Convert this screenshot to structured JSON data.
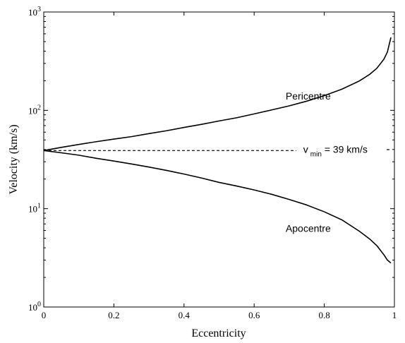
{
  "chart_data": {
    "type": "line",
    "title": "",
    "xlabel": "Eccentricity",
    "ylabel": "Velocity (km/s)",
    "xlim": [
      0,
      1
    ],
    "ylim": [
      1,
      1000
    ],
    "yscale": "log",
    "grid": false,
    "x_ticks": [
      {
        "value": 0,
        "label": "0"
      },
      {
        "value": 0.2,
        "label": "0.2"
      },
      {
        "value": 0.4,
        "label": "0.4"
      },
      {
        "value": 0.6,
        "label": "0.6"
      },
      {
        "value": 0.8,
        "label": "0.8"
      },
      {
        "value": 1,
        "label": "1"
      }
    ],
    "y_ticks": [
      {
        "value": 1,
        "base": "10",
        "exp": "0"
      },
      {
        "value": 10,
        "base": "10",
        "exp": "1"
      },
      {
        "value": 100,
        "base": "10",
        "exp": "2"
      },
      {
        "value": 1000,
        "base": "10",
        "exp": "3"
      }
    ],
    "series": [
      {
        "name": "Pericentre",
        "style": "solid",
        "x": [
          0,
          0.05,
          0.1,
          0.15,
          0.2,
          0.25,
          0.3,
          0.35,
          0.4,
          0.45,
          0.5,
          0.55,
          0.6,
          0.65,
          0.7,
          0.75,
          0.8,
          0.85,
          0.9,
          0.93,
          0.95,
          0.97,
          0.98,
          0.99
        ],
        "y": [
          39,
          42,
          45,
          48,
          51,
          54,
          58,
          62,
          67,
          72,
          78,
          84,
          92,
          101,
          111,
          124,
          141,
          164,
          199,
          233,
          268,
          331,
          392,
          551
        ]
      },
      {
        "name": "Apocentre",
        "style": "solid",
        "x": [
          0,
          0.05,
          0.1,
          0.15,
          0.2,
          0.25,
          0.3,
          0.35,
          0.4,
          0.45,
          0.5,
          0.55,
          0.6,
          0.65,
          0.7,
          0.75,
          0.8,
          0.85,
          0.9,
          0.93,
          0.95,
          0.97,
          0.98,
          0.99
        ],
        "y": [
          39,
          37,
          35,
          32.5,
          30.5,
          28.5,
          26.5,
          24.5,
          22.5,
          20.5,
          18.5,
          17,
          15.5,
          14,
          12.4,
          10.9,
          9.3,
          7.7,
          5.9,
          4.9,
          4.2,
          3.4,
          3.0,
          2.8
        ]
      },
      {
        "name": "v_min",
        "style": "dashed",
        "x": [
          0,
          0.72
        ],
        "y": [
          39,
          39
        ]
      }
    ],
    "annotations": {
      "pericentre": {
        "text": "Pericentre",
        "x": 0.69,
        "y": 140
      },
      "apocentre": {
        "text": "Apocentre",
        "x": 0.69,
        "y": 6.3
      },
      "vmin": {
        "v": "v",
        "sub": "min",
        "rest": " = 39 km/s",
        "x": 0.74,
        "y": 39
      }
    }
  }
}
